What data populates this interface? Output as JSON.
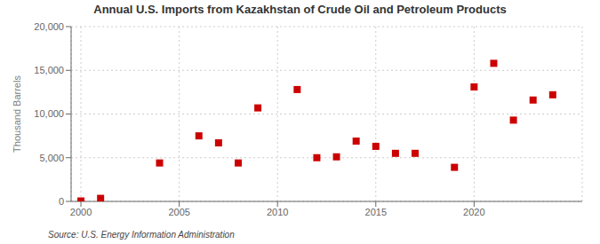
{
  "chart_data": {
    "type": "scatter",
    "title": "Annual U.S. Imports from Kazakhstan of Crude Oil and Petroleum Products",
    "ylabel": "Thousand Barrels",
    "source": "Source: U.S. Energy Information Administration",
    "x": [
      2000,
      2001,
      2004,
      2006,
      2007,
      2008,
      2009,
      2011,
      2012,
      2013,
      2014,
      2015,
      2016,
      2017,
      2019,
      2020,
      2021,
      2022,
      2023,
      2024
    ],
    "values": [
      50,
      350,
      4400,
      7500,
      6700,
      4400,
      10700,
      12800,
      5000,
      5100,
      6900,
      6300,
      5500,
      5500,
      3900,
      13100,
      15800,
      9300,
      11600,
      12200
    ],
    "color": "#cc0000",
    "marker": "square",
    "xlim": [
      1999.5,
      2025.5
    ],
    "ylim": [
      0,
      20000
    ],
    "xticks": [
      2000,
      2005,
      2010,
      2015,
      2020
    ],
    "yticks": [
      0,
      {
        "value": 5000,
        "label": "5,000"
      },
      {
        "value": 10000,
        "label": "10,000"
      },
      {
        "value": 15000,
        "label": "15,000"
      },
      {
        "value": 20000,
        "label": "20,000"
      }
    ],
    "grid": true
  }
}
